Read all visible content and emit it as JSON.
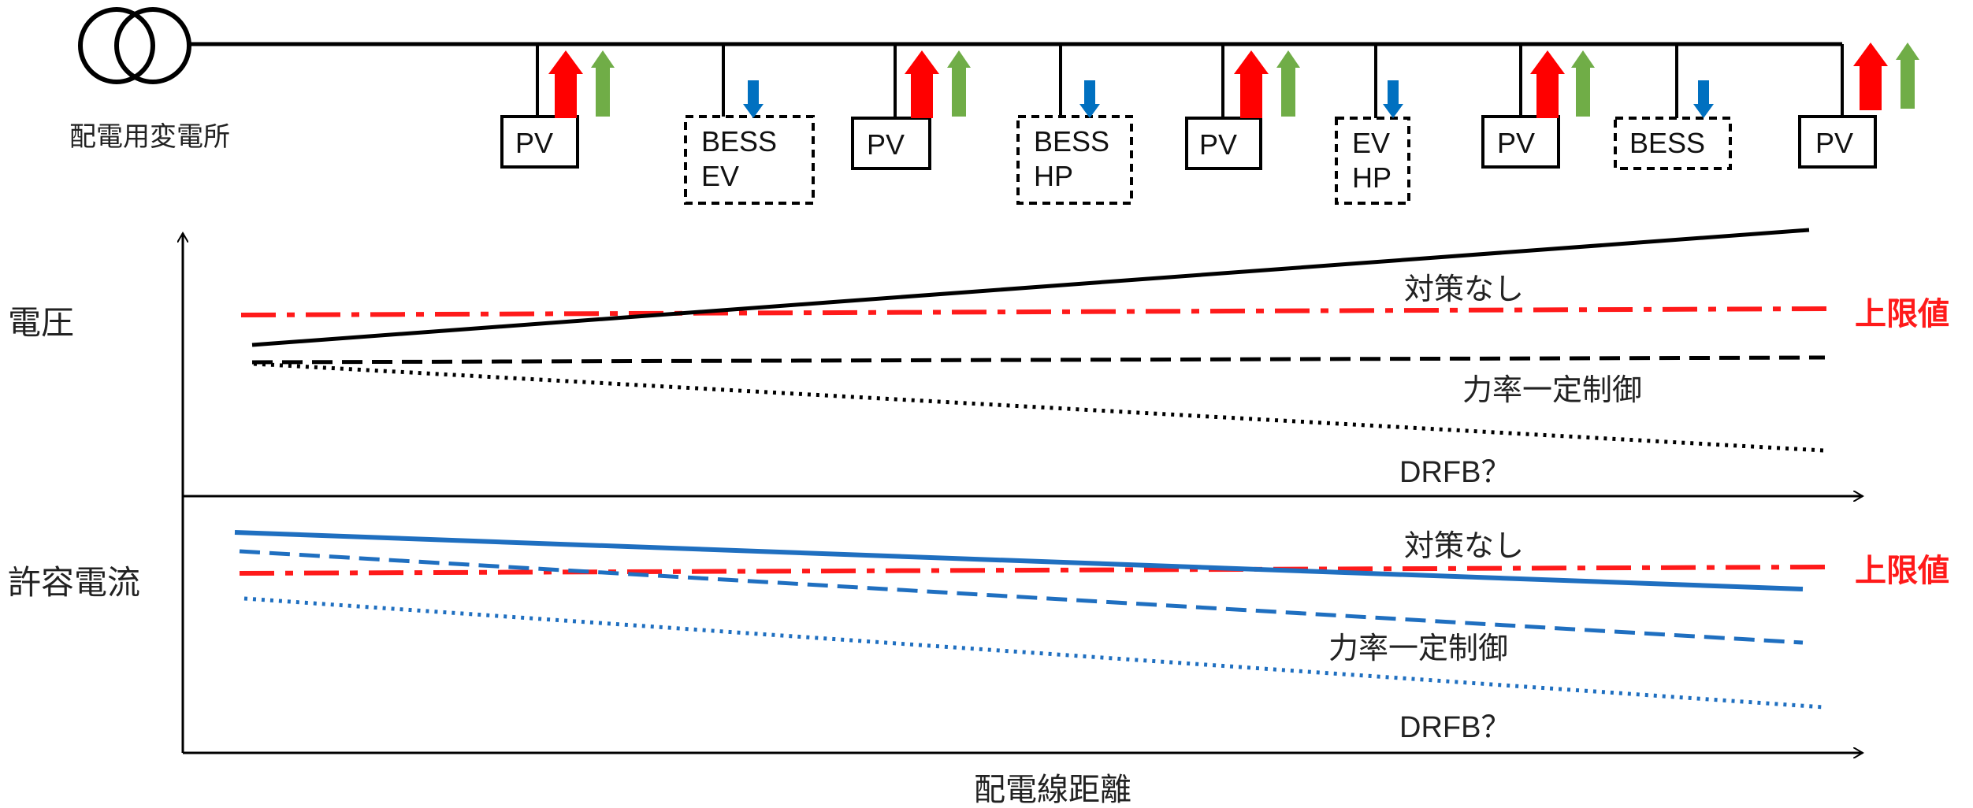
{
  "substation_label": "配電用変電所",
  "devices": [
    {
      "label": "PV",
      "label2": ""
    },
    {
      "label": "BESS",
      "label2": "EV"
    },
    {
      "label": "PV",
      "label2": ""
    },
    {
      "label": "BESS",
      "label2": "HP"
    },
    {
      "label": "PV",
      "label2": ""
    },
    {
      "label": "EV",
      "label2": "HP"
    },
    {
      "label": "PV",
      "label2": ""
    },
    {
      "label": "BESS",
      "label2": ""
    },
    {
      "label": "PV",
      "label2": ""
    }
  ],
  "voltage_panel": {
    "axis_label": "電圧",
    "limit_label": "上限値",
    "curve_no_measure": "対策なし",
    "curve_pf_control": "力率一定制御",
    "curve_drfb": "DRFB？"
  },
  "current_panel": {
    "axis_label": "許容電流",
    "limit_label": "上限値",
    "curve_no_measure": "対策なし",
    "curve_pf_control": "力率一定制御",
    "curve_drfb": "DRFB？"
  },
  "x_axis_label": "配電線距離",
  "colors": {
    "limit": "#ff1a1a",
    "voltage_curve": "#000000",
    "current_curve": "#1f6fc0",
    "arrow_red": "#ff0000",
    "arrow_green": "#70ad47",
    "arrow_blue": "#0070c0"
  }
}
